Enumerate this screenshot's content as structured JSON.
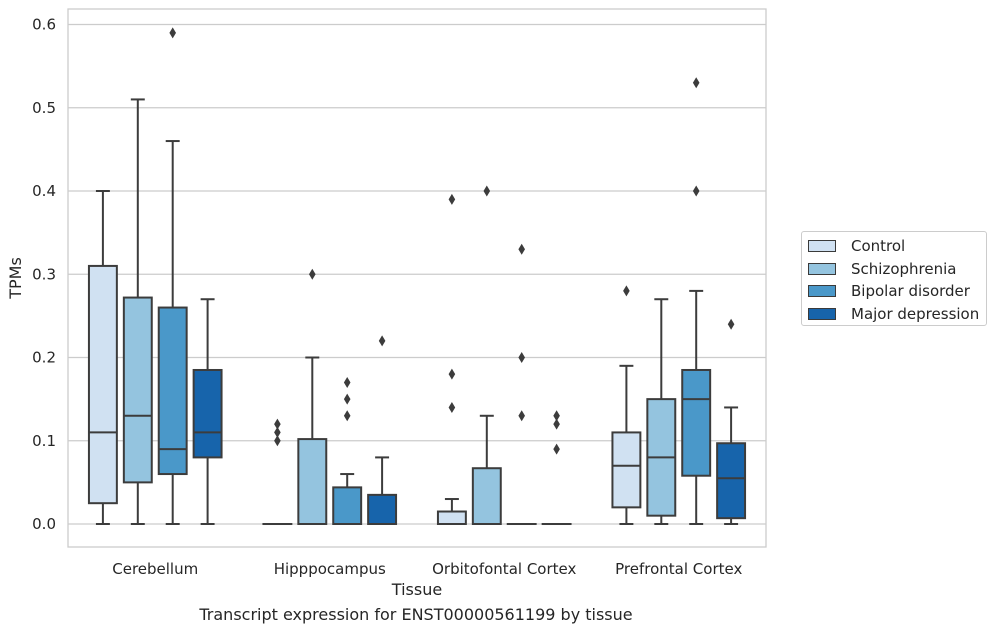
{
  "chart_data": {
    "type": "box",
    "title": "",
    "caption": "Transcript expression for ENST00000561199 by tissue",
    "xlabel": "Tissue",
    "ylabel": "TPMs",
    "ylim": [
      -0.028,
      0.62
    ],
    "yticks": [
      0.0,
      0.1,
      0.2,
      0.3,
      0.4,
      0.5,
      0.6
    ],
    "ytick_labels": [
      "0.0",
      "0.1",
      "0.2",
      "0.3",
      "0.4",
      "0.5",
      "0.6"
    ],
    "grid": "horizontal",
    "legend_position": "outside-right",
    "categories": [
      "Cerebellum",
      "Hipppocampus",
      "Orbitofontal Cortex",
      "Prefrontal Cortex"
    ],
    "series": [
      {
        "name": "Control",
        "color": "#d0e1f2",
        "boxes": [
          {
            "whislo": 0.0,
            "q1": 0.025,
            "med": 0.11,
            "q3": 0.31,
            "whishi": 0.4,
            "fliers": []
          },
          {
            "whislo": 0.0,
            "q1": 0.0,
            "med": 0.0,
            "q3": 0.0,
            "whishi": 0.0,
            "fliers": [
              0.1,
              0.11,
              0.12
            ]
          },
          {
            "whislo": 0.0,
            "q1": 0.0,
            "med": 0.0,
            "q3": 0.015,
            "whishi": 0.03,
            "fliers": [
              0.14,
              0.18,
              0.39
            ]
          },
          {
            "whislo": 0.0,
            "q1": 0.02,
            "med": 0.07,
            "q3": 0.11,
            "whishi": 0.19,
            "fliers": [
              0.28
            ]
          }
        ]
      },
      {
        "name": "Schizophrenia",
        "color": "#94c4df",
        "boxes": [
          {
            "whislo": 0.0,
            "q1": 0.05,
            "med": 0.13,
            "q3": 0.272,
            "whishi": 0.51,
            "fliers": []
          },
          {
            "whislo": 0.0,
            "q1": 0.0,
            "med": 0.0,
            "q3": 0.102,
            "whishi": 0.2,
            "fliers": [
              0.3
            ]
          },
          {
            "whislo": 0.0,
            "q1": 0.0,
            "med": 0.0,
            "q3": 0.067,
            "whishi": 0.13,
            "fliers": [
              0.4
            ]
          },
          {
            "whislo": 0.0,
            "q1": 0.01,
            "med": 0.08,
            "q3": 0.15,
            "whishi": 0.27,
            "fliers": []
          }
        ]
      },
      {
        "name": "Bipolar disorder",
        "color": "#4a98c9",
        "boxes": [
          {
            "whislo": 0.0,
            "q1": 0.06,
            "med": 0.09,
            "q3": 0.26,
            "whishi": 0.46,
            "fliers": [
              0.59
            ]
          },
          {
            "whislo": 0.0,
            "q1": 0.0,
            "med": 0.0,
            "q3": 0.044,
            "whishi": 0.06,
            "fliers": [
              0.13,
              0.15,
              0.17
            ]
          },
          {
            "whislo": 0.0,
            "q1": 0.0,
            "med": 0.0,
            "q3": 0.0,
            "whishi": 0.0,
            "fliers": [
              0.13,
              0.2,
              0.33
            ]
          },
          {
            "whislo": 0.0,
            "q1": 0.058,
            "med": 0.15,
            "q3": 0.185,
            "whishi": 0.28,
            "fliers": [
              0.4,
              0.53
            ]
          }
        ]
      },
      {
        "name": "Major depression",
        "color": "#1764ab",
        "boxes": [
          {
            "whislo": 0.0,
            "q1": 0.08,
            "med": 0.11,
            "q3": 0.185,
            "whishi": 0.27,
            "fliers": []
          },
          {
            "whislo": 0.0,
            "q1": 0.0,
            "med": 0.0,
            "q3": 0.035,
            "whishi": 0.08,
            "fliers": [
              0.22
            ]
          },
          {
            "whislo": 0.0,
            "q1": 0.0,
            "med": 0.0,
            "q3": 0.0,
            "whishi": 0.0,
            "fliers": [
              0.09,
              0.12,
              0.13
            ]
          },
          {
            "whislo": 0.0,
            "q1": 0.007,
            "med": 0.055,
            "q3": 0.097,
            "whishi": 0.14,
            "fliers": [
              0.24
            ]
          }
        ]
      }
    ]
  }
}
